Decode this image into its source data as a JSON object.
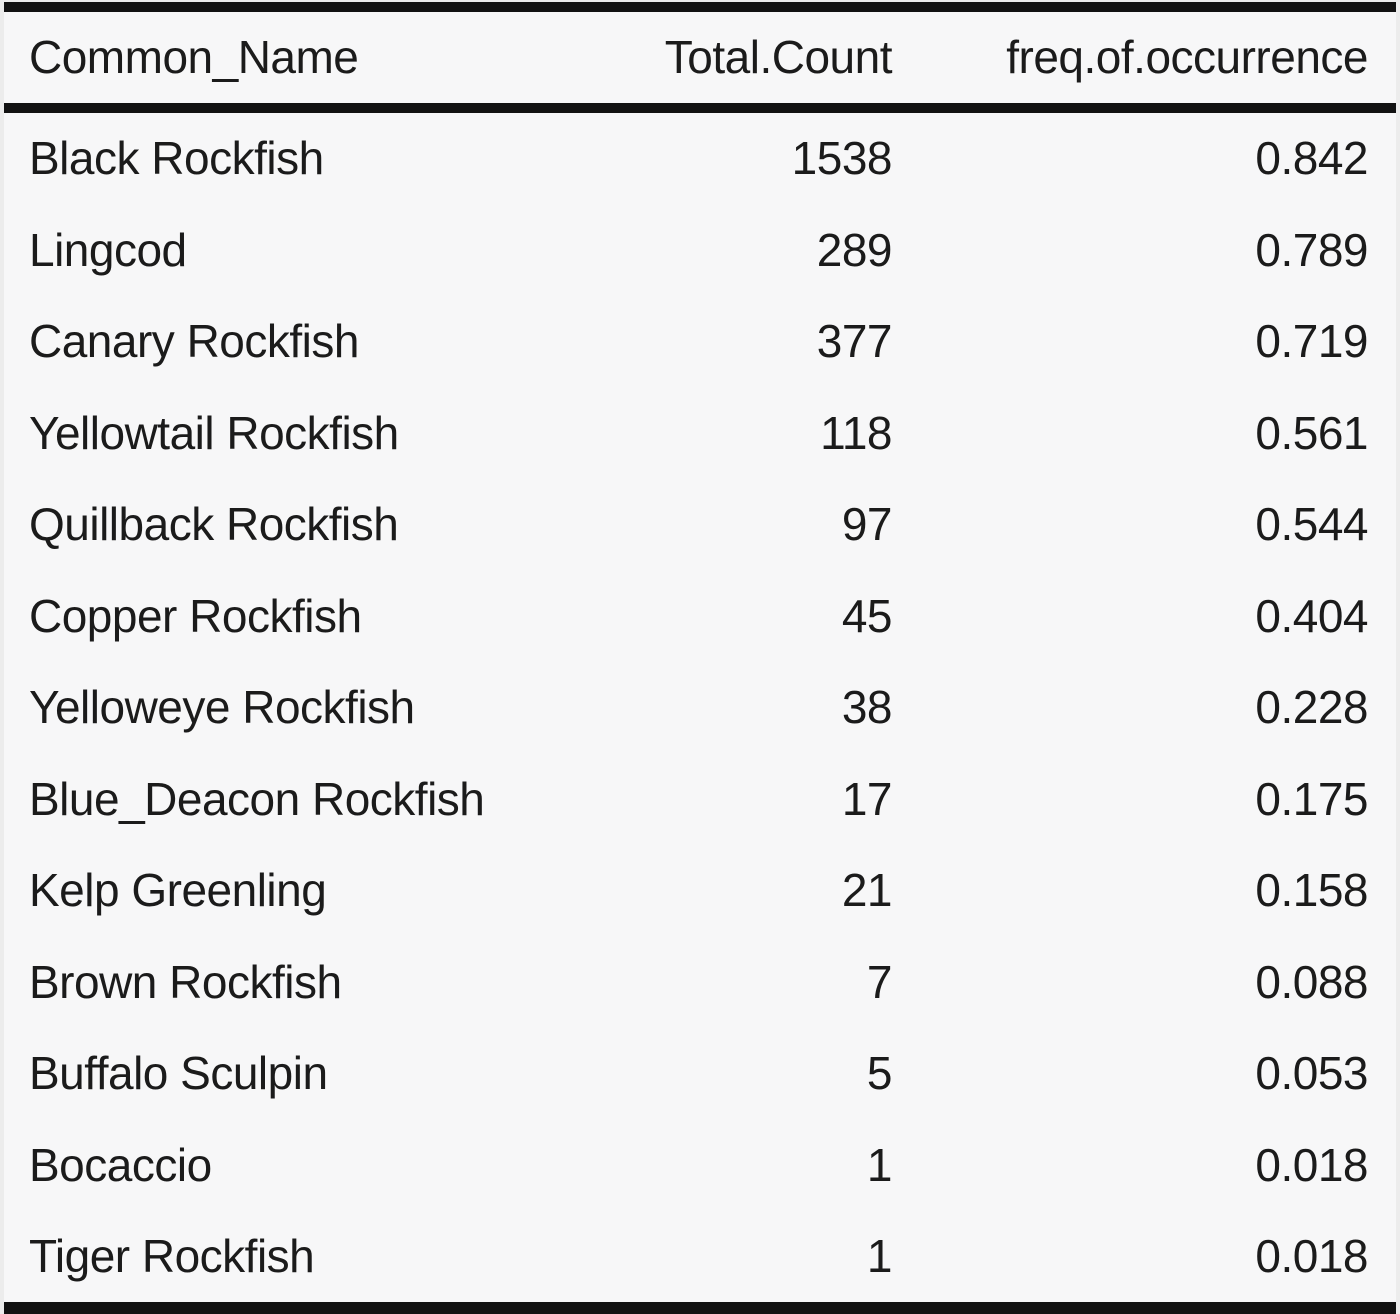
{
  "accent_colors": {
    "rule_color": "#121212",
    "text_color": "#1b1b1b",
    "table_background": "#f7f7f8",
    "page_background": "#ececec"
  },
  "chart_data": {
    "type": "table",
    "title": "",
    "columns": [
      "Common_Name",
      "Total.Count",
      "freq.of.occurrence"
    ],
    "rows": [
      [
        "Black Rockfish",
        1538,
        "0.842"
      ],
      [
        "Lingcod",
        289,
        "0.789"
      ],
      [
        "Canary Rockfish",
        377,
        "0.719"
      ],
      [
        "Yellowtail Rockfish",
        118,
        "0.561"
      ],
      [
        "Quillback Rockfish",
        97,
        "0.544"
      ],
      [
        "Copper Rockfish",
        45,
        "0.404"
      ],
      [
        "Yelloweye Rockfish",
        38,
        "0.228"
      ],
      [
        "Blue_Deacon Rockfish",
        17,
        "0.175"
      ],
      [
        "Kelp Greenling",
        21,
        "0.158"
      ],
      [
        "Brown Rockfish",
        7,
        "0.088"
      ],
      [
        "Buffalo Sculpin",
        5,
        "0.053"
      ],
      [
        "Bocaccio",
        1,
        "0.018"
      ],
      [
        "Tiger Rockfish",
        1,
        "0.018"
      ]
    ]
  }
}
